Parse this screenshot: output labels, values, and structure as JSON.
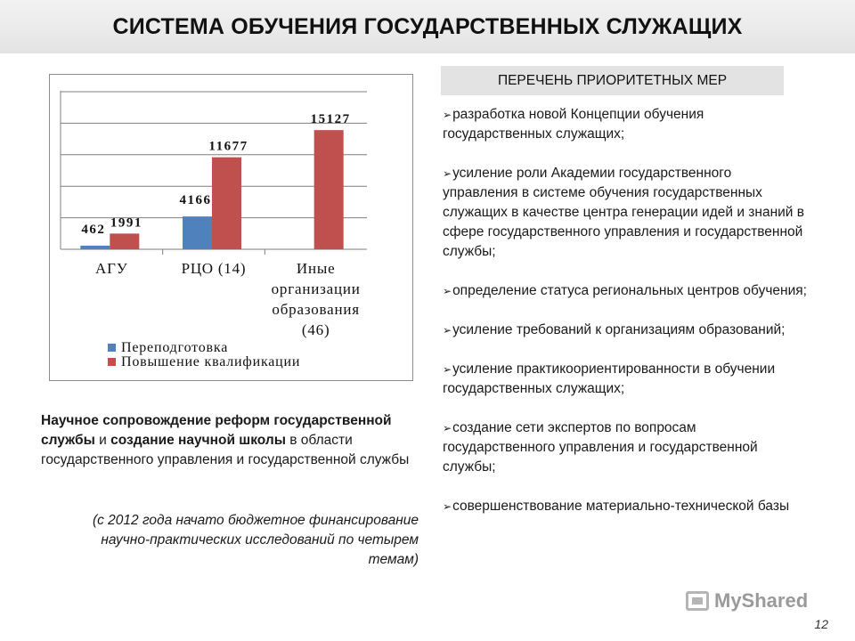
{
  "title": "СИСТЕМА ОБУЧЕНИЯ ГОСУДАРСТВЕННЫХ СЛУЖАЩИХ",
  "chart_data": {
    "type": "bar",
    "categories": [
      "АГУ",
      "РЦО (14)",
      "Иные организации образования (46)"
    ],
    "category_lines": [
      [
        "АГУ"
      ],
      [
        "РЦО (14)"
      ],
      [
        "Иные",
        "организации",
        "образования",
        "(46)"
      ]
    ],
    "series": [
      {
        "name": "Переподготовка",
        "values": [
          462,
          4166,
          null
        ],
        "labels": [
          "462",
          "4166",
          ""
        ],
        "color": "#4f81bd"
      },
      {
        "name": "Повышение квалификации",
        "values": [
          1991,
          11677,
          15127
        ],
        "labels": [
          "1991",
          "11677",
          "15127"
        ],
        "color": "#c0504d"
      }
    ],
    "ylim": [
      0,
      20000
    ],
    "grid": true,
    "legend": "bottom-left"
  },
  "left_text": {
    "p1_bold_a": "Научное сопровождение реформ государственной службы",
    "p1_mid": " и ",
    "p1_bold_b": "создание научной школы",
    "p1_rest": " в области государственного управления и государственной службы",
    "note": "(с 2012 года начато бюджетное финансирование научно-практических исследований по четырем темам)"
  },
  "measures": {
    "header": "ПЕРЕЧЕНЬ ПРИОРИТЕТНЫХ МЕР",
    "items": [
      "разработка новой Концепции обучения государственных служащих;",
      "усиление роли Академии государственного управления в системе обучения государственных служащих в качестве центра генерации идей и знаний в сфере государственного управления и государственной службы;",
      "определение статуса региональных центров обучения;",
      "усиление требований к организациям образований;",
      "усиление практикоориентированности в обучении государственных служащих;",
      "создание сети экспертов по вопросам государственного управления и государственной службы;",
      "совершенствование материально-технической базы"
    ]
  },
  "watermark": "MyShared",
  "page_number": "12"
}
